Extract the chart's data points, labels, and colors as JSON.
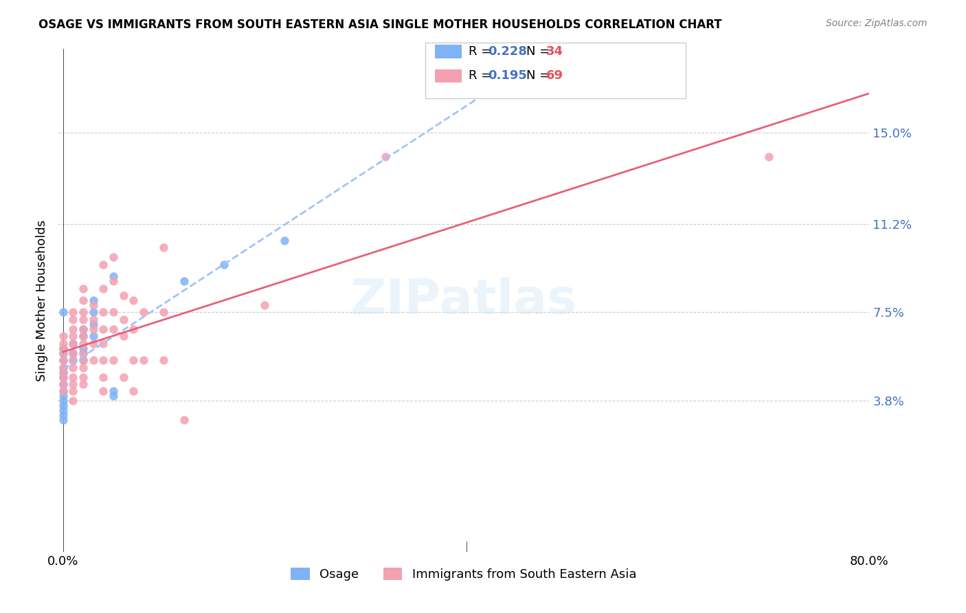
{
  "title": "OSAGE VS IMMIGRANTS FROM SOUTH EASTERN ASIA SINGLE MOTHER HOUSEHOLDS CORRELATION CHART",
  "source": "Source: ZipAtlas.com",
  "xlabel": "",
  "ylabel": "Single Mother Households",
  "xlim": [
    0.0,
    0.8
  ],
  "ylim": [
    -0.02,
    0.175
  ],
  "ytick_labels": [
    "3.8%",
    "7.5%",
    "11.2%",
    "15.0%"
  ],
  "ytick_values": [
    0.038,
    0.075,
    0.112,
    0.15
  ],
  "xtick_labels": [
    "0.0%",
    "",
    "",
    "",
    "",
    "",
    "",
    "",
    "80.0%"
  ],
  "xtick_values": [
    0.0,
    0.1,
    0.2,
    0.3,
    0.4,
    0.5,
    0.6,
    0.7,
    0.8
  ],
  "legend_entries": [
    {
      "label": "R = 0.228   N = 34",
      "color": "#aec6f0"
    },
    {
      "label": "R = 0.195   N = 69",
      "color": "#f4a7b9"
    }
  ],
  "color_osage": "#7fb3f5",
  "color_immigrants": "#f4a0b0",
  "trendline_osage_color": "#7fb3f5",
  "trendline_immigrants_color": "#e8607a",
  "watermark": "ZIPatlas",
  "osage_data": [
    [
      0.0,
      0.06
    ],
    [
      0.0,
      0.075
    ],
    [
      0.0,
      0.06
    ],
    [
      0.0,
      0.058
    ],
    [
      0.0,
      0.055
    ],
    [
      0.0,
      0.052
    ],
    [
      0.0,
      0.05
    ],
    [
      0.0,
      0.048
    ],
    [
      0.0,
      0.045
    ],
    [
      0.0,
      0.042
    ],
    [
      0.0,
      0.04
    ],
    [
      0.0,
      0.038
    ],
    [
      0.0,
      0.036
    ],
    [
      0.0,
      0.034
    ],
    [
      0.0,
      0.032
    ],
    [
      0.0,
      0.03
    ],
    [
      0.01,
      0.062
    ],
    [
      0.01,
      0.058
    ],
    [
      0.01,
      0.055
    ],
    [
      0.02,
      0.068
    ],
    [
      0.02,
      0.065
    ],
    [
      0.02,
      0.06
    ],
    [
      0.02,
      0.058
    ],
    [
      0.02,
      0.055
    ],
    [
      0.03,
      0.08
    ],
    [
      0.03,
      0.075
    ],
    [
      0.03,
      0.07
    ],
    [
      0.03,
      0.065
    ],
    [
      0.05,
      0.09
    ],
    [
      0.05,
      0.042
    ],
    [
      0.05,
      0.04
    ],
    [
      0.12,
      0.088
    ],
    [
      0.16,
      0.095
    ],
    [
      0.22,
      0.105
    ]
  ],
  "immigrants_data": [
    [
      0.0,
      0.065
    ],
    [
      0.0,
      0.062
    ],
    [
      0.0,
      0.06
    ],
    [
      0.0,
      0.058
    ],
    [
      0.0,
      0.055
    ],
    [
      0.0,
      0.052
    ],
    [
      0.0,
      0.05
    ],
    [
      0.0,
      0.048
    ],
    [
      0.0,
      0.045
    ],
    [
      0.0,
      0.042
    ],
    [
      0.01,
      0.075
    ],
    [
      0.01,
      0.072
    ],
    [
      0.01,
      0.068
    ],
    [
      0.01,
      0.065
    ],
    [
      0.01,
      0.062
    ],
    [
      0.01,
      0.058
    ],
    [
      0.01,
      0.055
    ],
    [
      0.01,
      0.052
    ],
    [
      0.01,
      0.048
    ],
    [
      0.01,
      0.045
    ],
    [
      0.01,
      0.042
    ],
    [
      0.01,
      0.038
    ],
    [
      0.02,
      0.085
    ],
    [
      0.02,
      0.08
    ],
    [
      0.02,
      0.075
    ],
    [
      0.02,
      0.072
    ],
    [
      0.02,
      0.068
    ],
    [
      0.02,
      0.065
    ],
    [
      0.02,
      0.062
    ],
    [
      0.02,
      0.058
    ],
    [
      0.02,
      0.055
    ],
    [
      0.02,
      0.052
    ],
    [
      0.02,
      0.048
    ],
    [
      0.02,
      0.045
    ],
    [
      0.03,
      0.078
    ],
    [
      0.03,
      0.072
    ],
    [
      0.03,
      0.068
    ],
    [
      0.03,
      0.062
    ],
    [
      0.03,
      0.055
    ],
    [
      0.04,
      0.095
    ],
    [
      0.04,
      0.085
    ],
    [
      0.04,
      0.075
    ],
    [
      0.04,
      0.068
    ],
    [
      0.04,
      0.062
    ],
    [
      0.04,
      0.055
    ],
    [
      0.04,
      0.048
    ],
    [
      0.04,
      0.042
    ],
    [
      0.05,
      0.098
    ],
    [
      0.05,
      0.088
    ],
    [
      0.05,
      0.075
    ],
    [
      0.05,
      0.068
    ],
    [
      0.05,
      0.055
    ],
    [
      0.06,
      0.082
    ],
    [
      0.06,
      0.072
    ],
    [
      0.06,
      0.065
    ],
    [
      0.06,
      0.048
    ],
    [
      0.07,
      0.08
    ],
    [
      0.07,
      0.068
    ],
    [
      0.07,
      0.055
    ],
    [
      0.07,
      0.042
    ],
    [
      0.08,
      0.075
    ],
    [
      0.08,
      0.055
    ],
    [
      0.1,
      0.102
    ],
    [
      0.1,
      0.075
    ],
    [
      0.1,
      0.055
    ],
    [
      0.12,
      0.03
    ],
    [
      0.2,
      0.078
    ],
    [
      0.32,
      0.14
    ],
    [
      0.7,
      0.14
    ]
  ]
}
